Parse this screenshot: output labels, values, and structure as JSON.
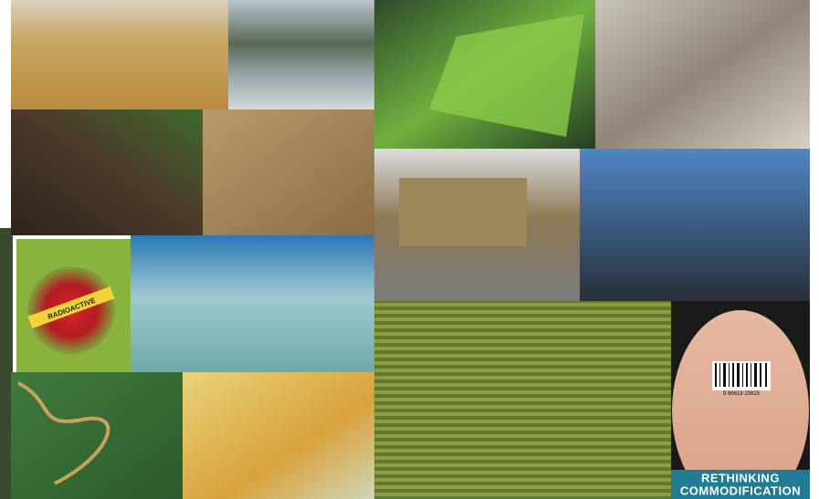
{
  "collage": {
    "apple_tape": "RADIOACTIVE",
    "barcode_number": "9 66619 23815",
    "caption": {
      "line1": "RETHINKING",
      "line2": "COMMODIFICATION"
    }
  }
}
